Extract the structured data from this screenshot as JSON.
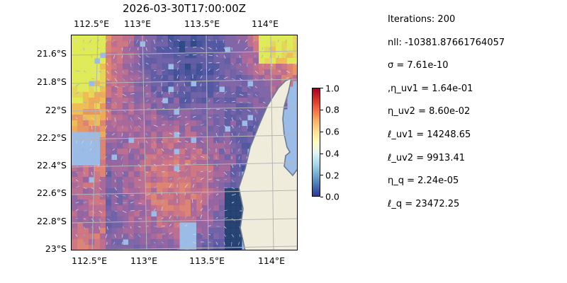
{
  "title": "2026-03-30T17:00:00Z",
  "stats": [
    "Iterations: 200",
    "nll: -10381.87661764057",
    "σ = 7.61e-10",
    ",η_uv1 = 1.64e-01",
    "η_uv2 = 8.60e-02",
    "ℓ_uv1 = 14248.65",
    "ℓ_uv2 = 9913.41",
    "η_q = 2.24e-05",
    "ℓ_q = 23472.25"
  ],
  "map": {
    "lon_labels": [
      "112.5°E",
      "113°E",
      "113.5°E",
      "114°E"
    ],
    "lat_labels": [
      "21.6°S",
      "21.8°S",
      "22°S",
      "22.2°S",
      "22.4°S",
      "22.6°S",
      "22.8°S",
      "23°S"
    ],
    "colors": {
      "ocean": "#9bbce6",
      "land": "#efecdc",
      "coast": "#6b7c92",
      "grid": "#b5b5b5"
    }
  },
  "colorbar": {
    "ticks": [
      "0.0",
      "0.2",
      "0.4",
      "0.6",
      "0.8",
      "1.0"
    ],
    "colormap": "RdYlBu_r"
  }
}
